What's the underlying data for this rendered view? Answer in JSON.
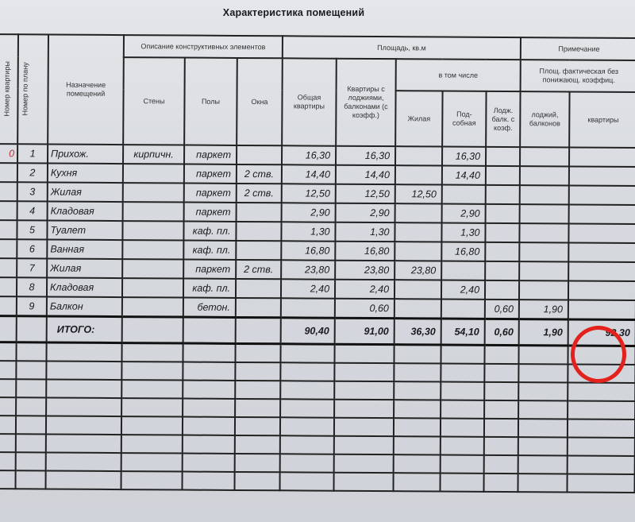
{
  "title": "Характеристика помещений",
  "headers": {
    "apartment_no": "Номер квартиры",
    "plan_no": "Номер по плану",
    "purpose": "Назначение помещений",
    "construction": "Описание конструктивных элементов",
    "walls": "Стены",
    "floors": "Полы",
    "windows": "Окна",
    "area": "Площадь, кв.м",
    "total_apartment": "Общая квартиры",
    "with_loggias": "Квартиры с лоджиями, балконами (с коэфф.)",
    "including": "в том числе",
    "living": "Жилая",
    "auxiliary": "Под-собная",
    "loggia_coef": "Лодж. балк. с коэф.",
    "note": "Примечание",
    "actual_area": "Площ. фактическая без понижающ. коэффиц.",
    "loggias_balconies": "лоджий, балконов",
    "apartment": "квартиры"
  },
  "rows": [
    {
      "cells": [
        "0",
        "1",
        "Прихож.",
        "кирпичн.",
        "паркет",
        "",
        "16,30",
        "16,30",
        "",
        "16,30",
        "",
        "",
        ""
      ]
    },
    {
      "cells": [
        "",
        "2",
        "Кухня",
        "",
        "паркет",
        "2 ств.",
        "14,40",
        "14,40",
        "",
        "14,40",
        "",
        "",
        ""
      ]
    },
    {
      "cells": [
        "",
        "3",
        "Жилая",
        "",
        "паркет",
        "2 ств.",
        "12,50",
        "12,50",
        "12,50",
        "",
        "",
        "",
        ""
      ]
    },
    {
      "cells": [
        "",
        "4",
        "Кладовая",
        "",
        "паркет",
        "",
        "2,90",
        "2,90",
        "",
        "2,90",
        "",
        "",
        ""
      ]
    },
    {
      "cells": [
        "",
        "5",
        "Туалет",
        "",
        "каф. пл.",
        "",
        "1,30",
        "1,30",
        "",
        "1,30",
        "",
        "",
        ""
      ]
    },
    {
      "cells": [
        "",
        "6",
        "Ванная",
        "",
        "каф. пл.",
        "",
        "16,80",
        "16,80",
        "",
        "16,80",
        "",
        "",
        ""
      ]
    },
    {
      "cells": [
        "",
        "7",
        "Жилая",
        "",
        "паркет",
        "2 ств.",
        "23,80",
        "23,80",
        "23,80",
        "",
        "",
        "",
        ""
      ]
    },
    {
      "cells": [
        "",
        "8",
        "Кладовая",
        "",
        "каф. пл.",
        "",
        "2,40",
        "2,40",
        "",
        "2,40",
        "",
        "",
        ""
      ]
    },
    {
      "cells": [
        "",
        "9",
        "Балкон",
        "",
        "бетон.",
        "",
        "",
        "0,60",
        "",
        "",
        "0,60",
        "1,90",
        ""
      ]
    }
  ],
  "total": {
    "label": "ИТОГО:",
    "total_apartment": "90,40",
    "with_loggias": "91,00",
    "living": "36,30",
    "auxiliary": "54,10",
    "loggia_coef": "0,60",
    "loggias_balconies": "1,90",
    "apartment": "92,30"
  },
  "colors": {
    "highlight_circle": "#e3211d",
    "apartment_no": "#c0303a"
  }
}
